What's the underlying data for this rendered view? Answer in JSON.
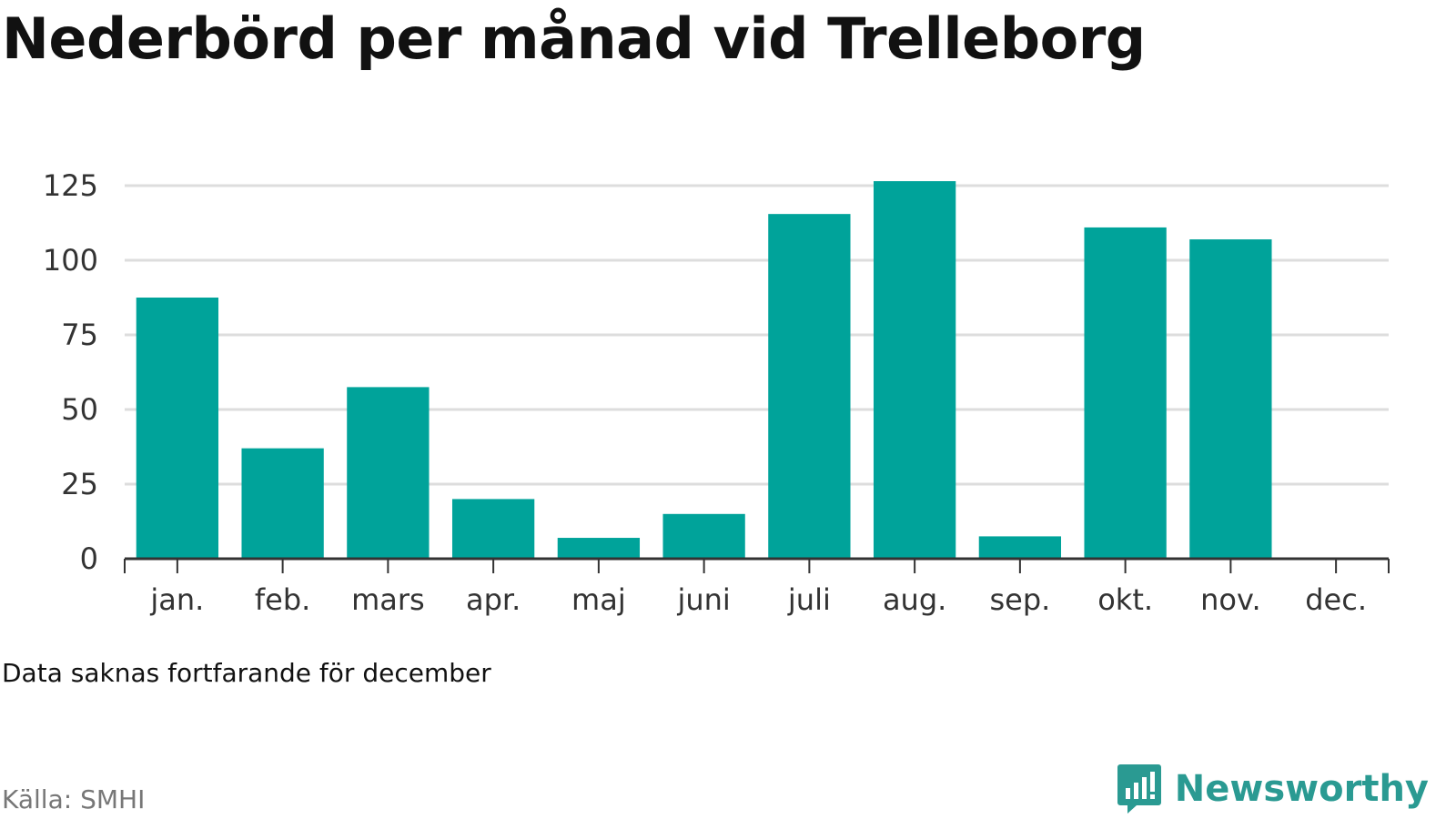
{
  "title": "Nederbörd per månad vid Trelleborg",
  "note": "Data saknas fortfarande för december",
  "source": "Källa: SMHI",
  "brand": "Newsworthy",
  "colors": {
    "bar": "#00a39a",
    "grid": "#dddddd",
    "axis": "#333333",
    "brand": "#2a9a92"
  },
  "chart_data": {
    "type": "bar",
    "title": "Nederbörd per månad vid Trelleborg",
    "categories": [
      "jan.",
      "feb.",
      "mars",
      "apr.",
      "maj",
      "juni",
      "juli",
      "aug.",
      "sep.",
      "okt.",
      "nov.",
      "dec."
    ],
    "values": [
      87.5,
      37,
      57.5,
      20,
      7,
      15,
      115.5,
      126.5,
      7.5,
      111,
      107,
      null
    ],
    "yticks": [
      0,
      25,
      50,
      75,
      100,
      125
    ],
    "ylim": [
      0,
      130
    ],
    "grid": true,
    "xlabel": "",
    "ylabel": ""
  }
}
